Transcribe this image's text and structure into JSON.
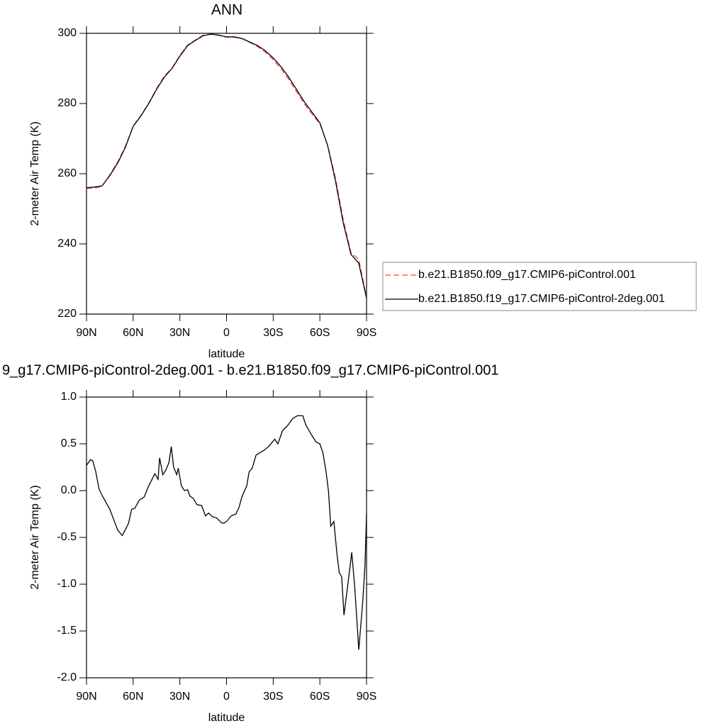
{
  "chart_data": [
    {
      "type": "line",
      "title": "ANN",
      "xlabel": "latitude",
      "ylabel": "2-meter Air Temp (K)",
      "x": [
        90,
        85,
        80,
        75,
        70,
        65,
        60,
        55,
        50,
        45,
        40,
        35,
        30,
        25,
        20,
        15,
        10,
        5,
        0,
        -5,
        -10,
        -15,
        -20,
        -25,
        -30,
        -35,
        -40,
        -45,
        -50,
        -55,
        -60,
        -65,
        -70,
        -75,
        -80,
        -85,
        -90
      ],
      "series": [
        {
          "name": "b.e21.B1850.f09_g17.CMIP6-piControl.001",
          "color": "#ff4040",
          "dashed": true,
          "values": [
            255.8,
            255.9,
            256.4,
            259.7,
            263.3,
            267.8,
            273.6,
            276.6,
            280.1,
            284.2,
            287.8,
            290.1,
            293.7,
            296.7,
            298.1,
            299.5,
            299.7,
            299.4,
            298.9,
            298.9,
            298.5,
            297.4,
            296.2,
            294.6,
            292.5,
            289.9,
            286.9,
            283.4,
            279.9,
            277,
            274.2,
            268.1,
            258.8,
            247,
            237.5,
            235.6,
            224.8
          ]
        },
        {
          "name": "b.e21.B1850.f19_g17.CMIP6-piControl-2deg.001",
          "color": "#000000",
          "dashed": false,
          "values": [
            256,
            256.2,
            256.5,
            259.5,
            263,
            267.5,
            273.5,
            276.5,
            280,
            284,
            287.5,
            290,
            293.5,
            296.5,
            298,
            299.3,
            299.8,
            299.5,
            299,
            299,
            298.5,
            297.5,
            296.5,
            295,
            293,
            290.5,
            287.5,
            284,
            280.5,
            277.5,
            274.5,
            268,
            258,
            246,
            237,
            234.5,
            224.5
          ]
        }
      ],
      "xlim": [
        90,
        -90
      ],
      "xticks": [
        {
          "value": 90,
          "label": "90N"
        },
        {
          "value": 60,
          "label": "60N"
        },
        {
          "value": 30,
          "label": "30N"
        },
        0,
        {
          "value": -30,
          "label": "30S"
        },
        {
          "value": -60,
          "label": "60S"
        },
        {
          "value": -90,
          "label": "90S"
        }
      ],
      "ylim": [
        220,
        300
      ],
      "yticks": [
        220,
        240,
        260,
        280,
        300
      ],
      "legend": "right"
    },
    {
      "type": "line",
      "title": "9_g17.CMIP6-piControl-2deg.001 - b.e21.B1850.f09_g17.CMIP6-piControl.001",
      "xlabel": "latitude",
      "ylabel": "2-meter Air Temp (K)",
      "x": [
        90,
        87.5,
        86,
        84,
        82,
        80,
        75,
        70,
        67,
        64.5,
        63,
        61,
        59,
        56,
        53,
        50,
        47,
        46,
        44,
        43,
        41,
        39,
        37,
        35.5,
        34,
        32,
        31,
        29,
        27,
        25,
        23.5,
        21.5,
        19,
        16,
        13.5,
        11.5,
        9,
        6.5,
        3.5,
        2,
        0,
        -3,
        -6,
        -8,
        -10,
        -13,
        -14.5,
        -16.5,
        -19,
        -21,
        -24,
        -27,
        -31,
        -33,
        -36,
        -39.5,
        -42.5,
        -45.5,
        -49,
        -51,
        -54.5,
        -57.5,
        -60,
        -62,
        -64,
        -65.5,
        -67,
        -69,
        -71,
        -72.5,
        -74,
        -75.5,
        -78,
        -80.5,
        -82.5,
        -85,
        -87.5,
        -89,
        -90
      ],
      "series": [
        {
          "color": "#000000",
          "dashed": false,
          "values": [
            0.27,
            0.33,
            0.32,
            0.2,
            0.02,
            -0.05,
            -0.2,
            -0.42,
            -0.48,
            -0.4,
            -0.35,
            -0.2,
            -0.19,
            -0.1,
            -0.07,
            0.05,
            0.15,
            0.18,
            0.12,
            0.35,
            0.17,
            0.22,
            0.3,
            0.47,
            0.25,
            0.17,
            0.24,
            0.05,
            0,
            0.01,
            -0.06,
            -0.08,
            -0.15,
            -0.16,
            -0.27,
            -0.24,
            -0.28,
            -0.29,
            -0.34,
            -0.35,
            -0.33,
            -0.27,
            -0.25,
            -0.18,
            -0.06,
            0.05,
            0.2,
            0.24,
            0.38,
            0.4,
            0.43,
            0.47,
            0.55,
            0.5,
            0.64,
            0.7,
            0.77,
            0.8,
            0.8,
            0.7,
            0.6,
            0.52,
            0.5,
            0.4,
            0.2,
            0,
            -0.38,
            -0.33,
            -0.68,
            -0.88,
            -0.92,
            -1.33,
            -1,
            -0.66,
            -1.05,
            -1.7,
            -1.2,
            -0.8,
            -0.25
          ]
        }
      ],
      "xlim": [
        90,
        -90
      ],
      "xticks": [
        {
          "value": 90,
          "label": "90N"
        },
        {
          "value": 60,
          "label": "60N"
        },
        {
          "value": 30,
          "label": "30N"
        },
        0,
        {
          "value": -30,
          "label": "30S"
        },
        {
          "value": -60,
          "label": "60S"
        },
        {
          "value": -90,
          "label": "90S"
        }
      ],
      "ylim": [
        -2,
        1
      ],
      "yticks": [
        {
          "value": -2,
          "label": "-2.0"
        },
        -1.5,
        {
          "value": -1,
          "label": "-1.0"
        },
        -0.5,
        {
          "value": 0,
          "label": "0.0"
        },
        0.5,
        {
          "value": 1,
          "label": "1.0"
        }
      ]
    }
  ]
}
